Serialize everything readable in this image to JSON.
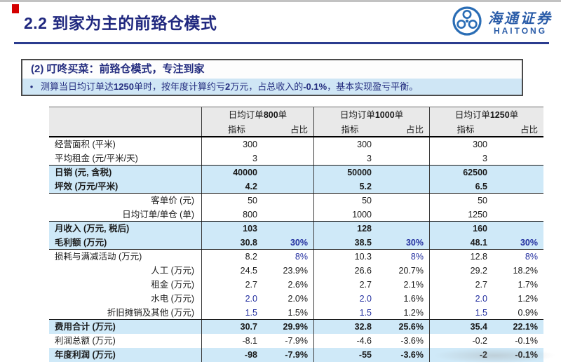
{
  "page": {
    "title": "2.2 到家为主的前臵仓模式"
  },
  "logo": {
    "cn": "海通证券",
    "en": "HAITONG"
  },
  "callout": {
    "heading": "(2)  叮咚买菜：前臵仓模式，专注到家",
    "bullet_segments": [
      {
        "t": "测算当日均订单达",
        "b": false
      },
      {
        "t": "1250",
        "b": true
      },
      {
        "t": "单时，按年度计算约亏",
        "b": false
      },
      {
        "t": "2",
        "b": true
      },
      {
        "t": "万元，占总收入的",
        "b": false
      },
      {
        "t": "-0.1%",
        "b": true
      },
      {
        "t": "，基本实现盈亏平衡。",
        "b": false
      }
    ]
  },
  "table": {
    "col_groups": [
      {
        "prefix": "日均订单",
        "num": "800",
        "suffix": "单"
      },
      {
        "prefix": "日均订单",
        "num": "1000",
        "suffix": "单"
      },
      {
        "prefix": "日均订单",
        "num": "1250",
        "suffix": "单"
      }
    ],
    "sub_headers": [
      "指标",
      "占比"
    ],
    "rows": [
      {
        "label": "经营面积 (平米)",
        "align": "left",
        "highlight": false,
        "cells": [
          [
            "300",
            ""
          ],
          [
            "300",
            ""
          ],
          [
            "300",
            ""
          ]
        ]
      },
      {
        "label": "平均租金 (元/平米/天)",
        "align": "left",
        "highlight": false,
        "line_below": true,
        "cells": [
          [
            "3",
            ""
          ],
          [
            "3",
            ""
          ],
          [
            "3",
            ""
          ]
        ]
      },
      {
        "label": "日销 (元, 含税)",
        "align": "left",
        "highlight": true,
        "cells": [
          [
            "40000",
            ""
          ],
          [
            "50000",
            ""
          ],
          [
            "62500",
            ""
          ]
        ]
      },
      {
        "label": "坪效 (万元/平米)",
        "align": "left",
        "highlight": true,
        "line_below": true,
        "cells": [
          [
            "4.2",
            ""
          ],
          [
            "5.2",
            ""
          ],
          [
            "6.5",
            ""
          ]
        ]
      },
      {
        "label": "客单价 (元)",
        "align": "right",
        "highlight": false,
        "cells": [
          [
            "50",
            ""
          ],
          [
            "50",
            ""
          ],
          [
            "50",
            ""
          ]
        ]
      },
      {
        "label": "日均订单/单仓 (单)",
        "align": "right",
        "highlight": false,
        "line_below": true,
        "cells": [
          [
            "800",
            ""
          ],
          [
            "1000",
            ""
          ],
          [
            "1250",
            ""
          ]
        ]
      },
      {
        "label": "月收入 (万元, 税后)",
        "align": "left",
        "highlight": true,
        "cells": [
          [
            "103",
            ""
          ],
          [
            "128",
            ""
          ],
          [
            "160",
            ""
          ]
        ]
      },
      {
        "label": "毛利额 (万元)",
        "align": "left",
        "highlight": true,
        "line_below": true,
        "pct_blue": true,
        "cells": [
          [
            "30.8",
            "30%"
          ],
          [
            "38.5",
            "30%"
          ],
          [
            "48.1",
            "30%"
          ]
        ]
      },
      {
        "label": "损耗与满减活动 (万元)",
        "align": "left",
        "highlight": false,
        "pct_blue": true,
        "cells": [
          [
            "8.2",
            "8%"
          ],
          [
            "10.3",
            "8%"
          ],
          [
            "12.8",
            "8%"
          ]
        ]
      },
      {
        "label": "人工 (万元)",
        "align": "right",
        "highlight": false,
        "cells": [
          [
            "24.5",
            "23.9%"
          ],
          [
            "26.6",
            "20.7%"
          ],
          [
            "29.2",
            "18.2%"
          ]
        ]
      },
      {
        "label": "租金 (万元)",
        "align": "right",
        "highlight": false,
        "cells": [
          [
            "2.7",
            "2.6%"
          ],
          [
            "2.7",
            "2.1%"
          ],
          [
            "2.7",
            "1.7%"
          ]
        ]
      },
      {
        "label": "水电 (万元)",
        "align": "right",
        "highlight": false,
        "val_blue": true,
        "cells": [
          [
            "2.0",
            "2.0%"
          ],
          [
            "2.0",
            "1.6%"
          ],
          [
            "2.0",
            "1.2%"
          ]
        ]
      },
      {
        "label": "折旧摊销及其他 (万元)",
        "align": "right",
        "highlight": false,
        "line_below": true,
        "val_blue": true,
        "cells": [
          [
            "1.5",
            "1.5%"
          ],
          [
            "1.5",
            "1.2%"
          ],
          [
            "1.5",
            "0.9%"
          ]
        ]
      },
      {
        "label": "费用合计 (万元)",
        "align": "left",
        "highlight": true,
        "cells": [
          [
            "30.7",
            "29.9%"
          ],
          [
            "32.8",
            "25.6%"
          ],
          [
            "35.4",
            "22.1%"
          ]
        ]
      },
      {
        "label": "利润总额 (万元)",
        "align": "left",
        "highlight": false,
        "cells": [
          [
            "-8.1",
            "-7.9%"
          ],
          [
            "-4.6",
            "-3.6%"
          ],
          [
            "-0.2",
            "-0.1%"
          ]
        ]
      },
      {
        "label": "年度利润 (万元)",
        "align": "left",
        "highlight": true,
        "cells": [
          [
            "-98",
            "-7.9%"
          ],
          [
            "-55",
            "-3.6%"
          ],
          [
            "-2",
            "-0.1%"
          ]
        ]
      }
    ]
  },
  "colors": {
    "navy_text": "#20287f",
    "red_accent": "#d40000",
    "title_rule": "#2b3c8f",
    "callout_bullet_bg": "#cfe6f5",
    "table_header_bg": "#e9e9e9",
    "highlight_row_bg": "#cfe9f8",
    "input_blue_text": "#2430a0",
    "logo_blue": "#2a5ca8"
  }
}
